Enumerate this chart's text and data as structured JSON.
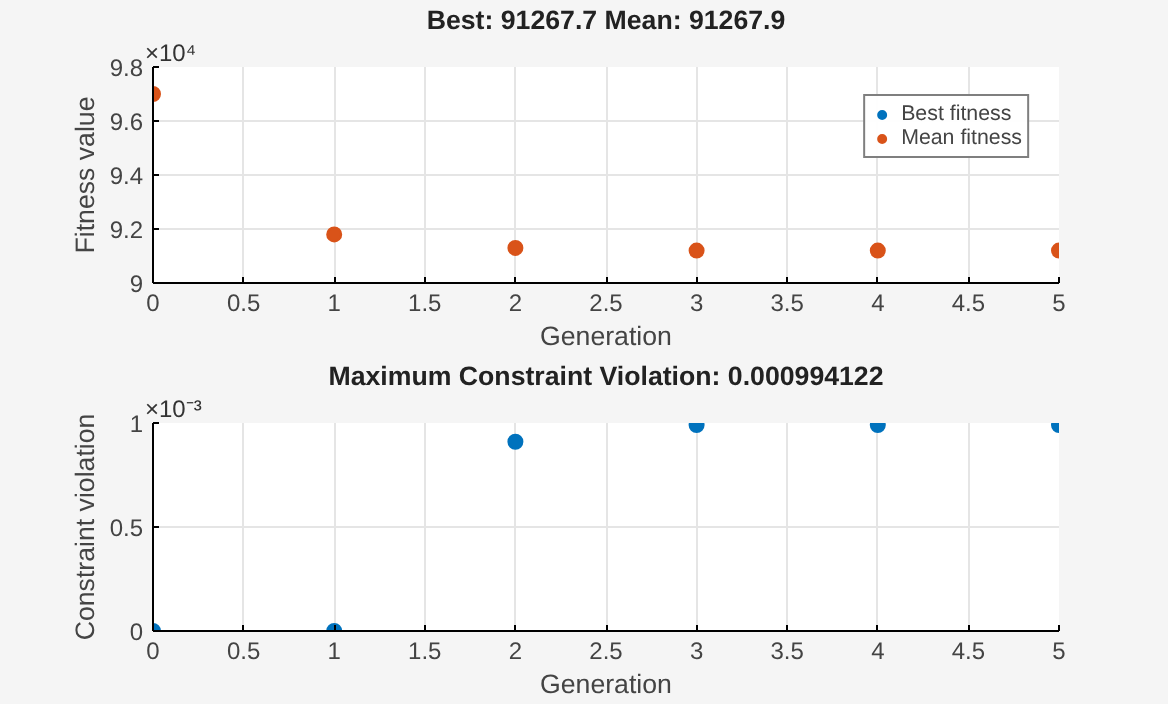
{
  "chart_data": [
    {
      "type": "scatter",
      "title": "Best: 91267.7 Mean: 91267.9",
      "xlabel": "Generation",
      "ylabel": "Fitness value",
      "x": [
        0,
        1,
        2,
        3,
        4,
        5
      ],
      "series": [
        {
          "name": "Best fitness",
          "color": "#0072bd",
          "values": [
            null,
            null,
            null,
            null,
            null,
            null
          ]
        },
        {
          "name": "Mean fitness",
          "color": "#d95319",
          "values": [
            9.7,
            9.18,
            9.13,
            9.12,
            9.12,
            9.12
          ]
        }
      ],
      "xlim": [
        0,
        5
      ],
      "xticks": [
        0,
        0.5,
        1,
        1.5,
        2,
        2.5,
        3,
        3.5,
        4,
        4.5,
        5
      ],
      "ylim": [
        9,
        9.8
      ],
      "yticks": [
        9,
        9.2,
        9.4,
        9.6,
        9.8
      ],
      "annotations": [
        "×10⁴"
      ],
      "grid": true,
      "legend": "top right",
      "marker": "circle"
    },
    {
      "type": "scatter",
      "title": "Maximum Constraint Violation: 0.000994122",
      "xlabel": "Generation",
      "ylabel": "Constraint violation",
      "x": [
        0,
        1,
        2,
        3,
        4,
        5
      ],
      "series": [
        {
          "color": "#0072bd",
          "values": [
            0,
            0,
            0.91,
            0.99,
            0.99,
            0.99
          ]
        }
      ],
      "xlim": [
        0,
        5
      ],
      "xticks": [
        0,
        0.5,
        1,
        1.5,
        2,
        2.5,
        3,
        3.5,
        4,
        4.5,
        5
      ],
      "ylim": [
        0,
        1
      ],
      "yticks": [
        0,
        0.5,
        1
      ],
      "annotations": [
        "×10⁻³"
      ],
      "grid": true,
      "marker": "circle"
    }
  ]
}
